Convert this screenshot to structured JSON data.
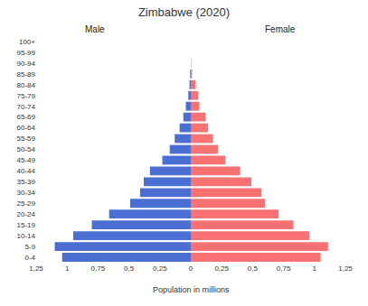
{
  "chart_data": {
    "type": "bar",
    "orientation": "horizontal",
    "title": "Zimbabwe (2020)",
    "x_label": "Population in millions",
    "grid": false,
    "categories": [
      "0-4",
      "5-9",
      "10-14",
      "15-19",
      "20-24",
      "25-29",
      "30-34",
      "35-39",
      "40-44",
      "45-49",
      "50-54",
      "55-59",
      "60-64",
      "65-69",
      "70-74",
      "75-79",
      "80-84",
      "85-89",
      "90-94",
      "95-99",
      "100+"
    ],
    "series": [
      {
        "name": "Male",
        "color": "#4a6ed2",
        "values": [
          1.04,
          1.1,
          0.95,
          0.8,
          0.66,
          0.49,
          0.41,
          0.38,
          0.33,
          0.23,
          0.17,
          0.13,
          0.09,
          0.06,
          0.04,
          0.02,
          0.01,
          0.005,
          0,
          0,
          0
        ],
        "xlim": [
          1.25,
          0
        ],
        "xticks": [
          {
            "value": 1.25,
            "label": "1,25"
          },
          1,
          {
            "value": 0.75,
            "label": "0,75"
          },
          {
            "value": 0.5,
            "label": "0,5"
          },
          {
            "value": 0.25,
            "label": "0,25"
          }
        ]
      },
      {
        "name": "Female",
        "color": "#f87173",
        "values": [
          1.05,
          1.11,
          0.96,
          0.83,
          0.71,
          0.6,
          0.57,
          0.49,
          0.4,
          0.28,
          0.22,
          0.18,
          0.14,
          0.12,
          0.07,
          0.06,
          0.04,
          0.01,
          0.003,
          0,
          0
        ],
        "xlim": [
          0,
          1.25
        ],
        "xticks": [
          0,
          {
            "value": 0.25,
            "label": "0,25"
          },
          {
            "value": 0.5,
            "label": "0,5"
          },
          {
            "value": 0.75,
            "label": "0,75"
          },
          1,
          {
            "value": 1.25,
            "label": "1,25"
          }
        ]
      }
    ]
  }
}
